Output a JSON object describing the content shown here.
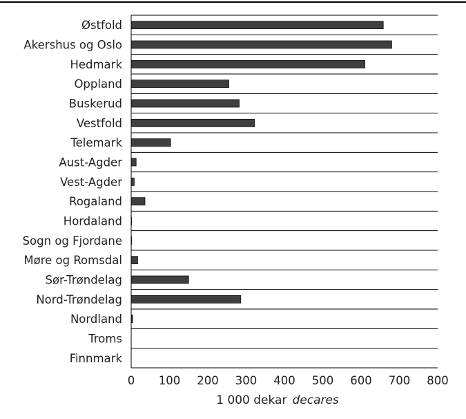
{
  "chart_data": {
    "type": "bar",
    "orientation": "horizontal",
    "categories": [
      "Østfold",
      "Akershus og Oslo",
      "Hedmark",
      "Oppland",
      "Buskerud",
      "Vestfold",
      "Telemark",
      "Aust-Agder",
      "Vest-Agder",
      "Rogaland",
      "Hordaland",
      "Sogn og Fjordane",
      "Møre og Romsdal",
      "Sør-Trøndelag",
      "Nord-Trøndelag",
      "Nordland",
      "Troms",
      "Finnmark"
    ],
    "values": [
      658,
      680,
      610,
      255,
      282,
      322,
      103,
      13,
      8,
      36,
      1,
      1,
      17,
      150,
      286,
      4,
      0,
      0
    ],
    "xlabel": "1 000 dekar",
    "xlabel_italic": "decares",
    "xlim": [
      0,
      800
    ],
    "xticks": [
      0,
      100,
      200,
      300,
      400,
      500,
      600,
      700,
      800
    ],
    "grid": "horizontal lines between categories",
    "legend": "none",
    "colors": {
      "bar": "#3f3f3f",
      "grid": "#000000",
      "text": "#222222",
      "top_rule": "#000000"
    }
  }
}
